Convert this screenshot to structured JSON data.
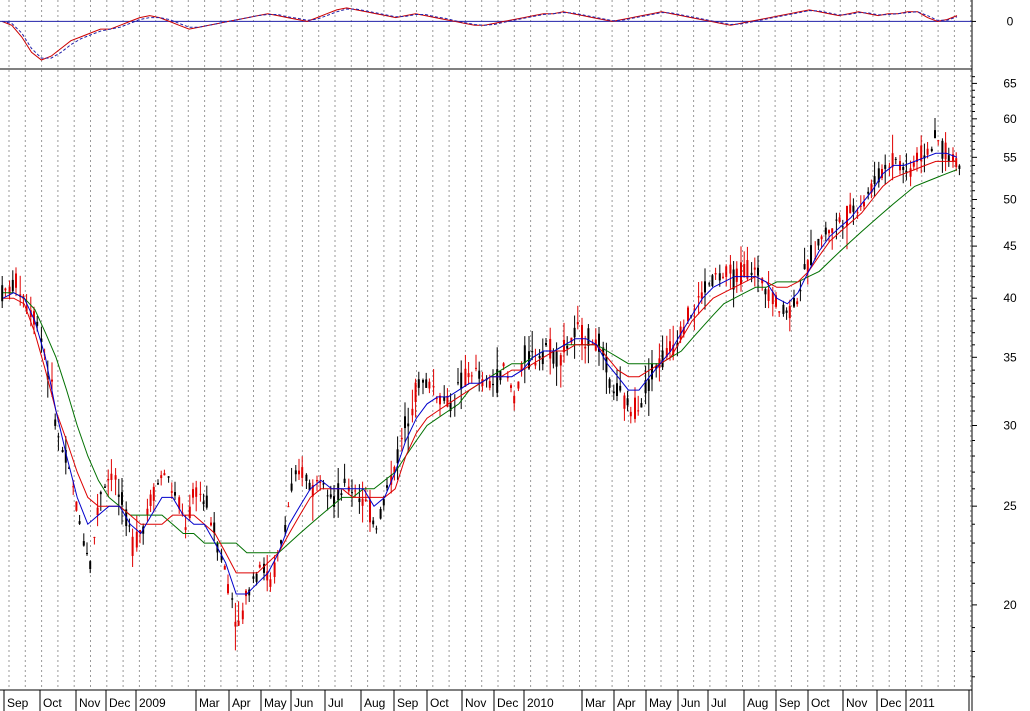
{
  "chart_data": [
    {
      "type": "line",
      "panel": "oscillator",
      "yticks": [
        0
      ],
      "ylim": [
        -10,
        4
      ],
      "series": [
        {
          "color": "#cc0000",
          "style": "solid",
          "values": [
            0,
            -1,
            -4,
            -8,
            -10,
            -9,
            -7,
            -5,
            -4,
            -3,
            -2,
            -2,
            -1,
            0,
            1,
            1.5,
            1,
            0,
            -1,
            -2,
            -1.5,
            -1,
            -0.5,
            0,
            0.5,
            1,
            1.5,
            2,
            1.5,
            1,
            0.5,
            0,
            1,
            2,
            3,
            3.5,
            3,
            2.5,
            2,
            1.5,
            1,
            1.5,
            2,
            1.5,
            1,
            0.5,
            0,
            -0.5,
            -1,
            -1,
            -0.5,
            0,
            0.5,
            1,
            1.5,
            2,
            2,
            2.5,
            2,
            1.5,
            1,
            0.5,
            0,
            0.5,
            1,
            1.5,
            2,
            2.5,
            2,
            1.5,
            1,
            0.5,
            0,
            -0.5,
            -1,
            -0.5,
            0,
            0.5,
            1,
            1.5,
            2,
            2.5,
            3,
            2.5,
            2,
            1.5,
            2,
            2.5,
            2,
            1.5,
            2,
            2,
            2.5,
            2.5,
            1,
            0,
            0.5,
            1.5
          ]
        },
        {
          "color": "#2222aa",
          "style": "dashed",
          "values": [
            0,
            -0.5,
            -3,
            -7,
            -9.5,
            -9.5,
            -8,
            -6,
            -4.5,
            -3.5,
            -2.5,
            -2,
            -1.5,
            -0.5,
            0.5,
            1,
            1,
            0.5,
            -0.5,
            -1.5,
            -1.5,
            -1,
            -0.5,
            0,
            0.5,
            1,
            1.5,
            1.8,
            1.8,
            1.2,
            0.8,
            0.3,
            0.6,
            1.5,
            2.5,
            3.2,
            3.2,
            2.7,
            2.2,
            1.7,
            1.2,
            1.3,
            1.8,
            1.8,
            1.2,
            0.8,
            0.2,
            -0.3,
            -0.8,
            -1,
            -0.8,
            -0.2,
            0.3,
            0.8,
            1.3,
            1.8,
            2,
            2.3,
            2.2,
            1.7,
            1.2,
            0.7,
            0.2,
            0.3,
            0.8,
            1.3,
            1.8,
            2.3,
            2.2,
            1.7,
            1.2,
            0.7,
            0.2,
            -0.3,
            -0.8,
            -0.7,
            -0.2,
            0.3,
            0.8,
            1.3,
            1.8,
            2.3,
            2.8,
            2.7,
            2.2,
            1.7,
            1.8,
            2.3,
            2.2,
            1.7,
            1.8,
            2,
            2.3,
            2.5,
            1.5,
            0.3,
            0.3,
            1.2
          ]
        }
      ]
    },
    {
      "type": "candlestick",
      "panel": "price",
      "yscale": "log",
      "ylim": [
        16.5,
        67
      ],
      "yticks": [
        20,
        25,
        30,
        35,
        40,
        45,
        50,
        55,
        60,
        65
      ],
      "x_labels": [
        "Sep",
        "Oct",
        "Nov",
        "Dec",
        "2009",
        "Mar",
        "Apr",
        "May",
        "Jun",
        "Jul",
        "Aug",
        "Sep",
        "Oct",
        "Nov",
        "Dec",
        "2010",
        "Mar",
        "Apr",
        "May",
        "Jun",
        "Jul",
        "Aug",
        "Sep",
        "Oct",
        "Nov",
        "Dec",
        "2011"
      ],
      "ohlc_close_by_week": [
        40.5,
        41.5,
        39.5,
        38,
        34,
        29,
        27,
        24,
        22,
        26,
        27,
        25,
        23,
        24,
        26,
        27,
        25.5,
        24,
        26,
        25,
        23,
        21,
        19,
        21,
        22,
        21,
        23,
        26,
        27,
        26,
        27,
        25.5,
        26,
        26,
        25,
        24,
        26,
        28,
        31,
        33,
        33,
        32,
        31.5,
        33,
        34,
        33,
        33,
        34,
        32,
        35,
        35,
        36,
        35,
        36,
        37,
        36.5,
        36,
        33,
        32,
        31,
        32,
        34,
        35,
        36,
        38,
        39,
        41,
        42,
        42,
        42,
        43,
        42,
        41,
        39,
        39,
        41,
        44,
        46,
        47,
        48,
        49,
        50,
        52,
        54,
        55,
        53,
        55,
        56,
        57,
        55,
        54
      ],
      "ma_blue_close_20": [
        40,
        40.5,
        40,
        38,
        35,
        31,
        28,
        25.5,
        24,
        24.5,
        25,
        25,
        24,
        23.5,
        24.5,
        25.5,
        25.5,
        24.5,
        24,
        24,
        23,
        22,
        20.5,
        20.5,
        21,
        21.5,
        22.5,
        24,
        25,
        26,
        26.5,
        26,
        26,
        26,
        26,
        25,
        25.5,
        27,
        29,
        30.5,
        31.5,
        32,
        32,
        32.5,
        33,
        33,
        33.5,
        33.5,
        33.5,
        34,
        35,
        35.5,
        35.5,
        36,
        36.5,
        36.5,
        36,
        34.5,
        33.5,
        32.5,
        32.5,
        33.5,
        34.5,
        35.5,
        37,
        38.5,
        40,
        41,
        41.5,
        42,
        42,
        42,
        41.5,
        40,
        39.5,
        40.5,
        42.5,
        44.5,
        46,
        47,
        48,
        49.5,
        51,
        53,
        54,
        54,
        54.5,
        55,
        55.5,
        55.5,
        55
      ],
      "ma_red_close_50": [
        40,
        40,
        39.5,
        37,
        34,
        31,
        29,
        27,
        25.5,
        25,
        25,
        25,
        24.5,
        24,
        24,
        24,
        24.5,
        24.5,
        24.5,
        24,
        23.5,
        22.5,
        21.5,
        21.5,
        21.5,
        22,
        22.5,
        23.5,
        24.5,
        25.5,
        26,
        26,
        26,
        25.5,
        25.5,
        25.5,
        25.5,
        26,
        28,
        29.5,
        30.5,
        31,
        31.5,
        32,
        32.5,
        33,
        33.5,
        33.5,
        34,
        34,
        34.5,
        35,
        35.5,
        35.5,
        36,
        36,
        36,
        35,
        34,
        33.5,
        33.5,
        34,
        34.5,
        35,
        36.5,
        38,
        39,
        40,
        40.5,
        41,
        41.5,
        42,
        41.5,
        41,
        41,
        41.5,
        42.5,
        44,
        45.5,
        46.5,
        47.5,
        48.5,
        50,
        51.5,
        52.5,
        53,
        53.5,
        54,
        54.5,
        54.5,
        54.5
      ],
      "ma_green_close_100": [
        40.5,
        40.5,
        40,
        39,
        37,
        35,
        32.5,
        30,
        28,
        26.5,
        25.5,
        25,
        24.5,
        24.5,
        24.5,
        24.5,
        24,
        23.5,
        23.5,
        23,
        23,
        23,
        23,
        22.5,
        22.5,
        22.5,
        22.5,
        23,
        23.5,
        24,
        24.5,
        25,
        25.5,
        25.5,
        26,
        26,
        26.5,
        27,
        28,
        29,
        30,
        30.5,
        31,
        31.5,
        32.5,
        33,
        33.5,
        34,
        34.5,
        34.5,
        35,
        35.5,
        35.5,
        36,
        36,
        36,
        36,
        35.5,
        35,
        34.5,
        34.5,
        34.5,
        34.5,
        35,
        35.5,
        36.5,
        37.5,
        38.5,
        39.5,
        40,
        40.5,
        41,
        41,
        41.5,
        41.5,
        41.5,
        42,
        42.5,
        43.5,
        44.5,
        45.5,
        46.5,
        47.5,
        48.5,
        49.5,
        50.5,
        51.5,
        52,
        52.5,
        53,
        53.5
      ]
    }
  ]
}
